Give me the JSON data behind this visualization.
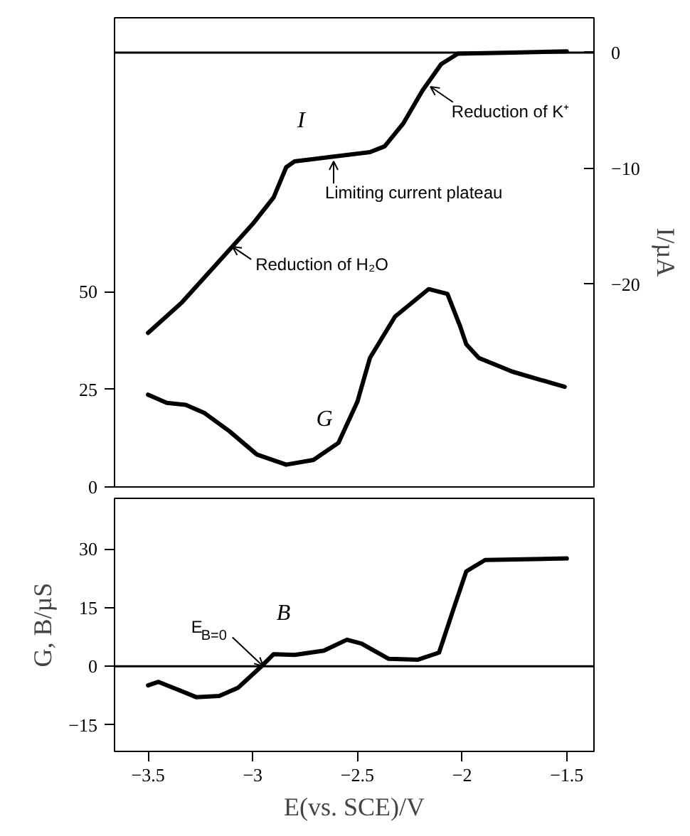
{
  "chart_data": [
    {
      "type": "line",
      "xlim": [
        -3.66,
        -1.37
      ],
      "ylim": [
        0,
        120
      ],
      "y2lim": [
        -37.5,
        3
      ],
      "yticks": [
        0,
        25,
        50
      ],
      "y2ticks": [
        0,
        -10,
        -20
      ],
      "y2label": "I/µA",
      "tick_labels": "y",
      "grid": false,
      "series": [
        {
          "name": "I",
          "axis": "y2",
          "color": "#000000",
          "x": [
            -3.5,
            -3.34,
            -3.11,
            -3.0,
            -2.9,
            -2.84,
            -2.8,
            -2.62,
            -2.44,
            -2.37,
            -2.28,
            -2.19,
            -2.1,
            -2.02,
            -1.76,
            -1.5
          ],
          "values": [
            -24.2,
            -21.6,
            -17.0,
            -14.8,
            -12.5,
            -9.9,
            -9.4,
            -9.0,
            -8.6,
            -8.1,
            -6.1,
            -3.3,
            -1.0,
            -0.1,
            0,
            0.1
          ]
        },
        {
          "name": "G",
          "color": "#000000",
          "x": [
            -3.5,
            -3.41,
            -3.32,
            -3.23,
            -3.11,
            -2.98,
            -2.84,
            -2.71,
            -2.59,
            -2.5,
            -2.44,
            -2.32,
            -2.16,
            -2.07,
            -2.01,
            -1.98,
            -1.92,
            -1.76,
            -1.51
          ],
          "values": [
            23.6,
            21.5,
            21.0,
            18.9,
            14.2,
            8.3,
            5.7,
            6.9,
            11.3,
            21.8,
            33.0,
            43.6,
            50.6,
            49.4,
            41.2,
            36.5,
            33.0,
            29.5,
            25.6
          ]
        }
      ],
      "ref_lines": [
        {
          "axis": "y2",
          "value": 0,
          "label": null,
          "color": "#000000"
        }
      ],
      "annotations": [
        "Reduction of K⁺",
        "Limiting current plateau",
        "Reduction of H₂O"
      ]
    },
    {
      "type": "line",
      "xlim": [
        -3.66,
        -1.37
      ],
      "ylim": [
        -21.8,
        43
      ],
      "xticks": [
        -3.5,
        -3.0,
        -2.5,
        -2.0,
        -1.5
      ],
      "yticks": [
        30,
        15,
        0,
        -15
      ],
      "xlabel": "E(vs. SCE)/V",
      "ylabel": "G, B/µS",
      "grid": false,
      "series": [
        {
          "name": "B",
          "color": "#000000",
          "x": [
            -3.5,
            -3.45,
            -3.38,
            -3.27,
            -3.16,
            -3.07,
            -2.96,
            -2.9,
            -2.8,
            -2.66,
            -2.55,
            -2.48,
            -2.35,
            -2.21,
            -2.11,
            -2.04,
            -1.98,
            -1.89,
            -1.5
          ],
          "values": [
            -4.9,
            -4.0,
            -5.5,
            -7.9,
            -7.6,
            -5.5,
            -0.1,
            3.1,
            2.9,
            4.0,
            6.8,
            5.8,
            1.9,
            1.7,
            3.5,
            14.8,
            24.3,
            27.2,
            27.6
          ]
        }
      ],
      "ref_lines": [
        {
          "axis": "y",
          "value": 0,
          "label": null,
          "color": "#000000"
        }
      ],
      "annotations": [
        {
          "text": "E$_{B=0}$",
          "x": -2.95,
          "y": 0
        }
      ]
    }
  ]
}
